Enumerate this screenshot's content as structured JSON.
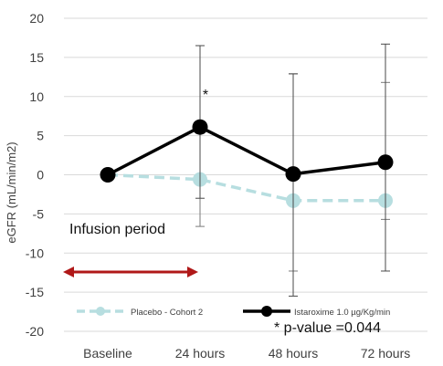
{
  "chart_data": {
    "type": "line",
    "title": "",
    "xlabel": "",
    "ylabel": "eGFR (mL/min/m2)",
    "ylim": [
      -20,
      20
    ],
    "yticks": [
      "20",
      "15",
      "10",
      "5",
      "0",
      "-5",
      "-10",
      "-15",
      "-20"
    ],
    "categories": [
      "Baseline",
      "24 hours",
      "48 hours",
      "72 hours"
    ],
    "grid": "horizontal",
    "legend_position": "bottom",
    "series": [
      {
        "name": "Placebo - Cohort 2",
        "color": "#b7dee0",
        "style": "dashed",
        "values": [
          0,
          -0.6,
          -3.3,
          -3.3
        ],
        "error_low": [
          null,
          -6.6,
          -12.3,
          -5.7
        ],
        "error_high": [
          null,
          5.4,
          12.9,
          11.8
        ]
      },
      {
        "name": "Istaroxime 1.0 µg/Kg/min",
        "color": "#000000",
        "style": "solid",
        "values": [
          0,
          6.1,
          0.1,
          1.6
        ],
        "error_low": [
          null,
          -3.0,
          -15.5,
          -12.3
        ],
        "error_high": [
          null,
          16.5,
          12.9,
          16.7
        ]
      }
    ],
    "annotations": {
      "significance_marker": "*",
      "infusion_label": "Infusion period",
      "pvalue_label": "* p-value =0.044",
      "infusion_arrow_color": "#b01818"
    }
  }
}
